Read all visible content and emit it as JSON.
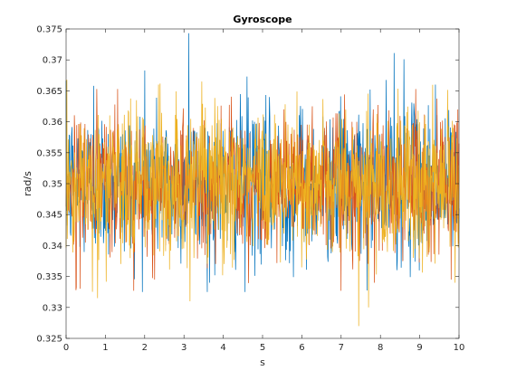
{
  "chart_data": {
    "type": "line",
    "title": "Gyroscope",
    "xlabel": "s",
    "ylabel": "rad/s",
    "xlim": [
      0,
      10
    ],
    "ylim": [
      0.325,
      0.375
    ],
    "x_ticks": [
      0,
      1,
      2,
      3,
      4,
      5,
      6,
      7,
      8,
      9,
      10
    ],
    "x_tick_labels": [
      "0",
      "1",
      "2",
      "3",
      "4",
      "5",
      "6",
      "7",
      "8",
      "9",
      "10"
    ],
    "y_ticks": [
      0.325,
      0.33,
      0.335,
      0.34,
      0.345,
      0.35,
      0.355,
      0.36,
      0.365,
      0.37,
      0.375
    ],
    "y_tick_labels": [
      "0.325",
      "0.33",
      "0.335",
      "0.34",
      "0.345",
      "0.35",
      "0.355",
      "0.36",
      "0.365",
      "0.37",
      "0.375"
    ],
    "grid": false,
    "legend": "none",
    "series": [
      {
        "color": "#0072BD",
        "x_start": 0,
        "x_end": 10,
        "mean": 0.35,
        "approx_std": 0.006,
        "min_observed": 0.3325,
        "max_observed": 0.3743,
        "notable_points": [
          [
            0.7,
            0.3658
          ],
          [
            2.0,
            0.3683
          ],
          [
            3.12,
            0.3743
          ],
          [
            4.6,
            0.3673
          ],
          [
            8.35,
            0.3711
          ],
          [
            8.6,
            0.3701
          ],
          [
            9.4,
            0.366
          ],
          [
            3.65,
            0.334
          ],
          [
            4.55,
            0.3325
          ]
        ]
      },
      {
        "color": "#D95319",
        "x_start": 0,
        "x_end": 10,
        "mean": 0.35,
        "approx_std": 0.0055,
        "min_observed": 0.3327,
        "max_observed": 0.3653,
        "notable_points": [
          [
            0.25,
            0.3328
          ],
          [
            2.25,
            0.3345
          ],
          [
            5.55,
            0.362
          ],
          [
            7.0,
            0.3327
          ],
          [
            7.85,
            0.334
          ],
          [
            9.8,
            0.3345
          ]
        ]
      },
      {
        "color": "#EDB120",
        "x_start": 0,
        "x_end": 10,
        "mean": 0.35,
        "approx_std": 0.0062,
        "min_observed": 0.327,
        "max_observed": 0.3668,
        "notable_points": [
          [
            0.02,
            0.3668
          ],
          [
            0.8,
            0.3315
          ],
          [
            2.35,
            0.366
          ],
          [
            3.45,
            0.3665
          ],
          [
            3.15,
            0.331
          ],
          [
            7.45,
            0.327
          ],
          [
            7.7,
            0.33
          ],
          [
            9.9,
            0.334
          ]
        ]
      }
    ]
  }
}
